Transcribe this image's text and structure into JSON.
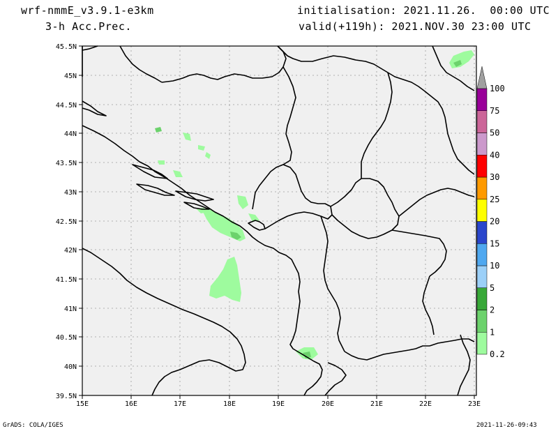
{
  "header": {
    "model": "wrf-nmmE_v3.9.1-e3km",
    "field": "3-h Acc.Prec.",
    "init": "initialisation: 2021.11.26.  00:00 UTC",
    "valid": "valid(+119h): 2021.NOV.30 23:00 UTC"
  },
  "map": {
    "lat_labels": [
      "45.5N",
      "45N",
      "44.5N",
      "44N",
      "43.5N",
      "43N",
      "42.5N",
      "42N",
      "41.5N",
      "41N",
      "40.5N",
      "40N",
      "39.5N"
    ],
    "lon_labels": [
      "15E",
      "16E",
      "17E",
      "18E",
      "19E",
      "20E",
      "21E",
      "22E",
      "23E"
    ],
    "background_color": "#f0f0f0"
  },
  "legend": {
    "levels": [
      {
        "label": "0.2",
        "color": "#9efb9e"
      },
      {
        "label": "1",
        "color": "#6cd26c"
      },
      {
        "label": "2",
        "color": "#38a838"
      },
      {
        "label": "5",
        "color": "#9cd0f8"
      },
      {
        "label": "10",
        "color": "#4fa8f0"
      },
      {
        "label": "15",
        "color": "#2a46cc"
      },
      {
        "label": "20",
        "color": "#ffff00"
      },
      {
        "label": "25",
        "color": "#ff9a00"
      },
      {
        "label": "30",
        "color": "#ff0000"
      },
      {
        "label": "40",
        "color": "#cc99cc"
      },
      {
        "label": "50",
        "color": "#cc6699"
      },
      {
        "label": "75",
        "color": "#990099"
      },
      {
        "label": "100",
        "color": "#a0a0a0"
      }
    ]
  },
  "footer": {
    "left": "GrADS: COLA/IGES",
    "right": "2021-11-26-09:43"
  }
}
